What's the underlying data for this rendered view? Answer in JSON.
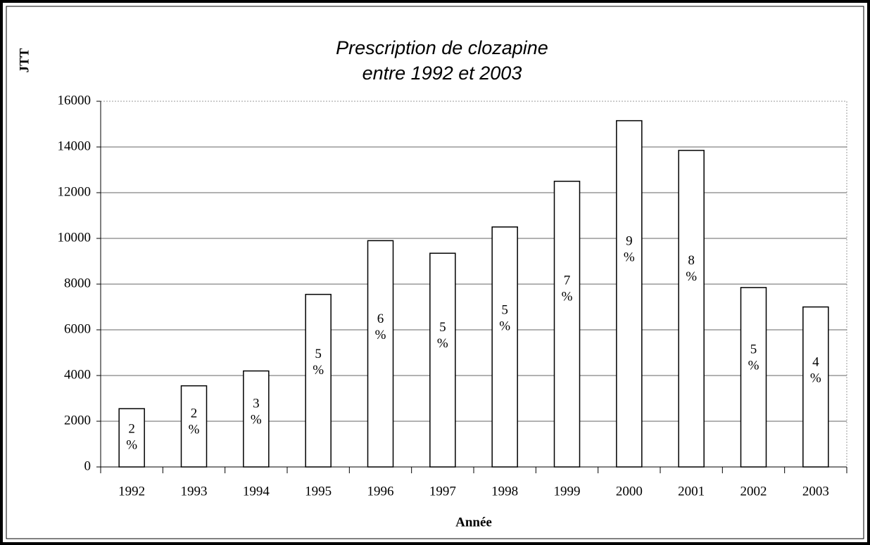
{
  "chart_data": {
    "type": "bar",
    "title": [
      "Prescription de clozapine",
      "entre 1992 et 2003"
    ],
    "y_label": "JTT",
    "x_label": "Année",
    "categories": [
      "1992",
      "1993",
      "1994",
      "1995",
      "1996",
      "1997",
      "1998",
      "1999",
      "2000",
      "2001",
      "2002",
      "2003"
    ],
    "values": [
      2550,
      3550,
      4200,
      7550,
      9900,
      9350,
      10500,
      12500,
      15150,
      13850,
      7850,
      7000
    ],
    "bar_labels": [
      [
        "2",
        "%"
      ],
      [
        "2",
        "%"
      ],
      [
        "3",
        "%"
      ],
      [
        "5",
        "%"
      ],
      [
        "6",
        "%"
      ],
      [
        "5",
        "%"
      ],
      [
        "5",
        "%"
      ],
      [
        "7",
        "%"
      ],
      [
        "9",
        "%"
      ],
      [
        "8",
        "%"
      ],
      [
        "5",
        "%"
      ],
      [
        "4",
        "%"
      ]
    ],
    "color": "#ffffff",
    "ylim": [
      0,
      16000
    ],
    "yticks": [
      0,
      2000,
      4000,
      6000,
      8000,
      10000,
      12000,
      14000,
      16000
    ],
    "grid": true
  }
}
